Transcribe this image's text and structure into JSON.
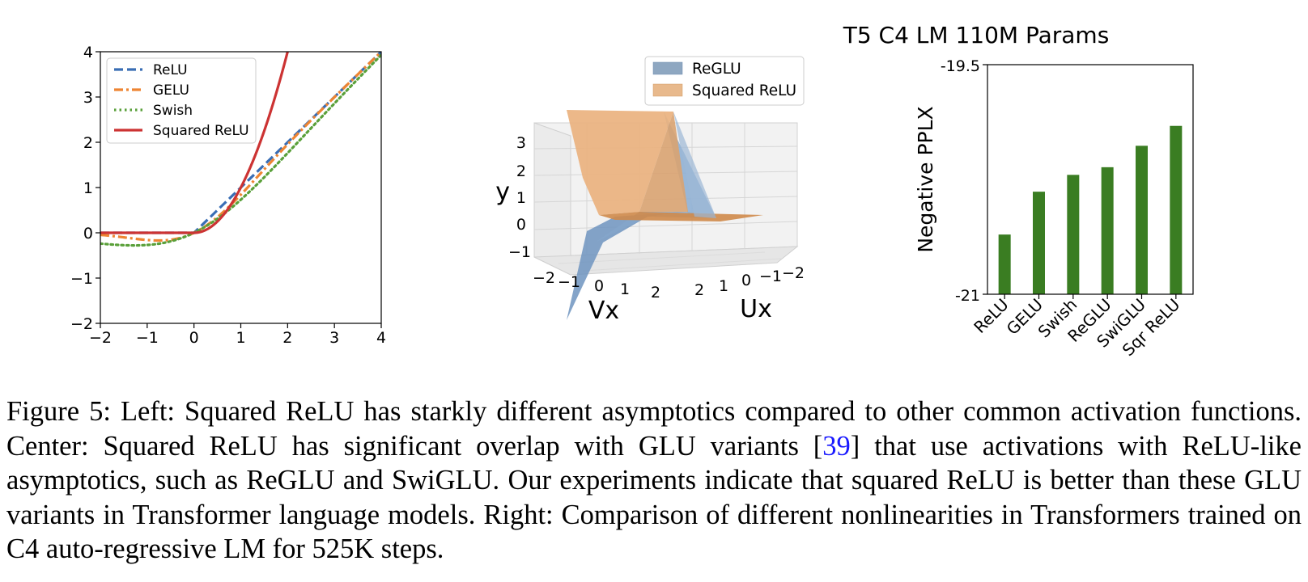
{
  "chart_data": [
    {
      "type": "line",
      "xlim": [
        -2,
        4
      ],
      "ylim": [
        -2,
        4
      ],
      "xticks": [
        -2,
        -1,
        0,
        1,
        2,
        3,
        4
      ],
      "yticks": [
        -2,
        -1,
        0,
        1,
        2,
        3,
        4
      ],
      "xtick_labels": [
        "−2",
        "−1",
        "0",
        "1",
        "2",
        "3",
        "4"
      ],
      "ytick_labels": [
        "−2",
        "−1",
        "0",
        "1",
        "2",
        "3",
        "4"
      ],
      "legend_position": "upper-left",
      "series": [
        {
          "name": "ReLU",
          "function": "relu",
          "color": "#3a6eb5",
          "style": "dashed",
          "x": [
            -2,
            -1,
            0,
            1,
            2,
            3,
            4
          ],
          "y": [
            0,
            0,
            0,
            1,
            2,
            3,
            4
          ]
        },
        {
          "name": "GELU",
          "function": "gelu",
          "color": "#ee8533",
          "style": "dashdot",
          "x": [
            -2,
            -1,
            -0.5,
            0,
            0.5,
            1,
            2,
            3,
            4
          ],
          "y": [
            -0.05,
            -0.16,
            -0.15,
            0,
            0.35,
            0.84,
            1.95,
            3.0,
            4.0
          ]
        },
        {
          "name": "Swish",
          "function": "swish",
          "color": "#5aa03a",
          "style": "dotted",
          "x": [
            -2,
            -1,
            0,
            1,
            2,
            3,
            4
          ],
          "y": [
            -0.24,
            -0.27,
            0,
            0.73,
            1.76,
            2.86,
            3.93
          ]
        },
        {
          "name": "Squared ReLU",
          "function": "squared_relu",
          "color": "#cc3333",
          "style": "solid",
          "x": [
            -2,
            0,
            0.5,
            1,
            1.5,
            2
          ],
          "y": [
            0,
            0,
            0.25,
            1,
            2.25,
            4
          ]
        }
      ]
    },
    {
      "type": "surface",
      "xlabel": "Vx",
      "ylabel": "Ux",
      "zlabel": "y",
      "x_tick_labels": [
        "−2",
        "−1",
        "0",
        "1",
        "2"
      ],
      "u_tick_labels": [
        "2",
        "1",
        "0",
        "−1",
        "−2"
      ],
      "z_tick_labels": [
        "3",
        "2",
        "1",
        "0",
        "−1"
      ],
      "legend_position": "top",
      "series": [
        {
          "name": "ReGLU",
          "color": "#8ea7c1"
        },
        {
          "name": "Squared ReLU",
          "color": "#e8b98c"
        }
      ]
    },
    {
      "type": "bar",
      "title": "T5 C4 LM 110M Params",
      "ylabel": "Negative PPLX",
      "ylim": [
        -21,
        -19.5
      ],
      "ytick_labels": [
        "-19.5",
        "-21"
      ],
      "categories": [
        "ReLU",
        "GELU",
        "Swish",
        "ReGLU",
        "SwiGLU",
        "Sqr ReLU"
      ],
      "values": [
        -20.61,
        -20.33,
        -20.22,
        -20.17,
        -20.03,
        -19.9
      ],
      "color": "#3a7d22"
    }
  ],
  "caption": {
    "part1": "Figure 5: Left: Squared ReLU has starkly different asymptotics compared to other common activation functions. Center: Squared ReLU has significant overlap with GLU variants [",
    "ref": "39",
    "part2": "] that use activations with ReLU-like asymptotics, such as ReGLU and SwiGLU. Our experiments indicate that squared ReLU is better than these GLU variants in Transformer language models. Right: Comparison of different nonlinearities in Transformers trained on C4 auto-regressive LM for 525K steps."
  }
}
